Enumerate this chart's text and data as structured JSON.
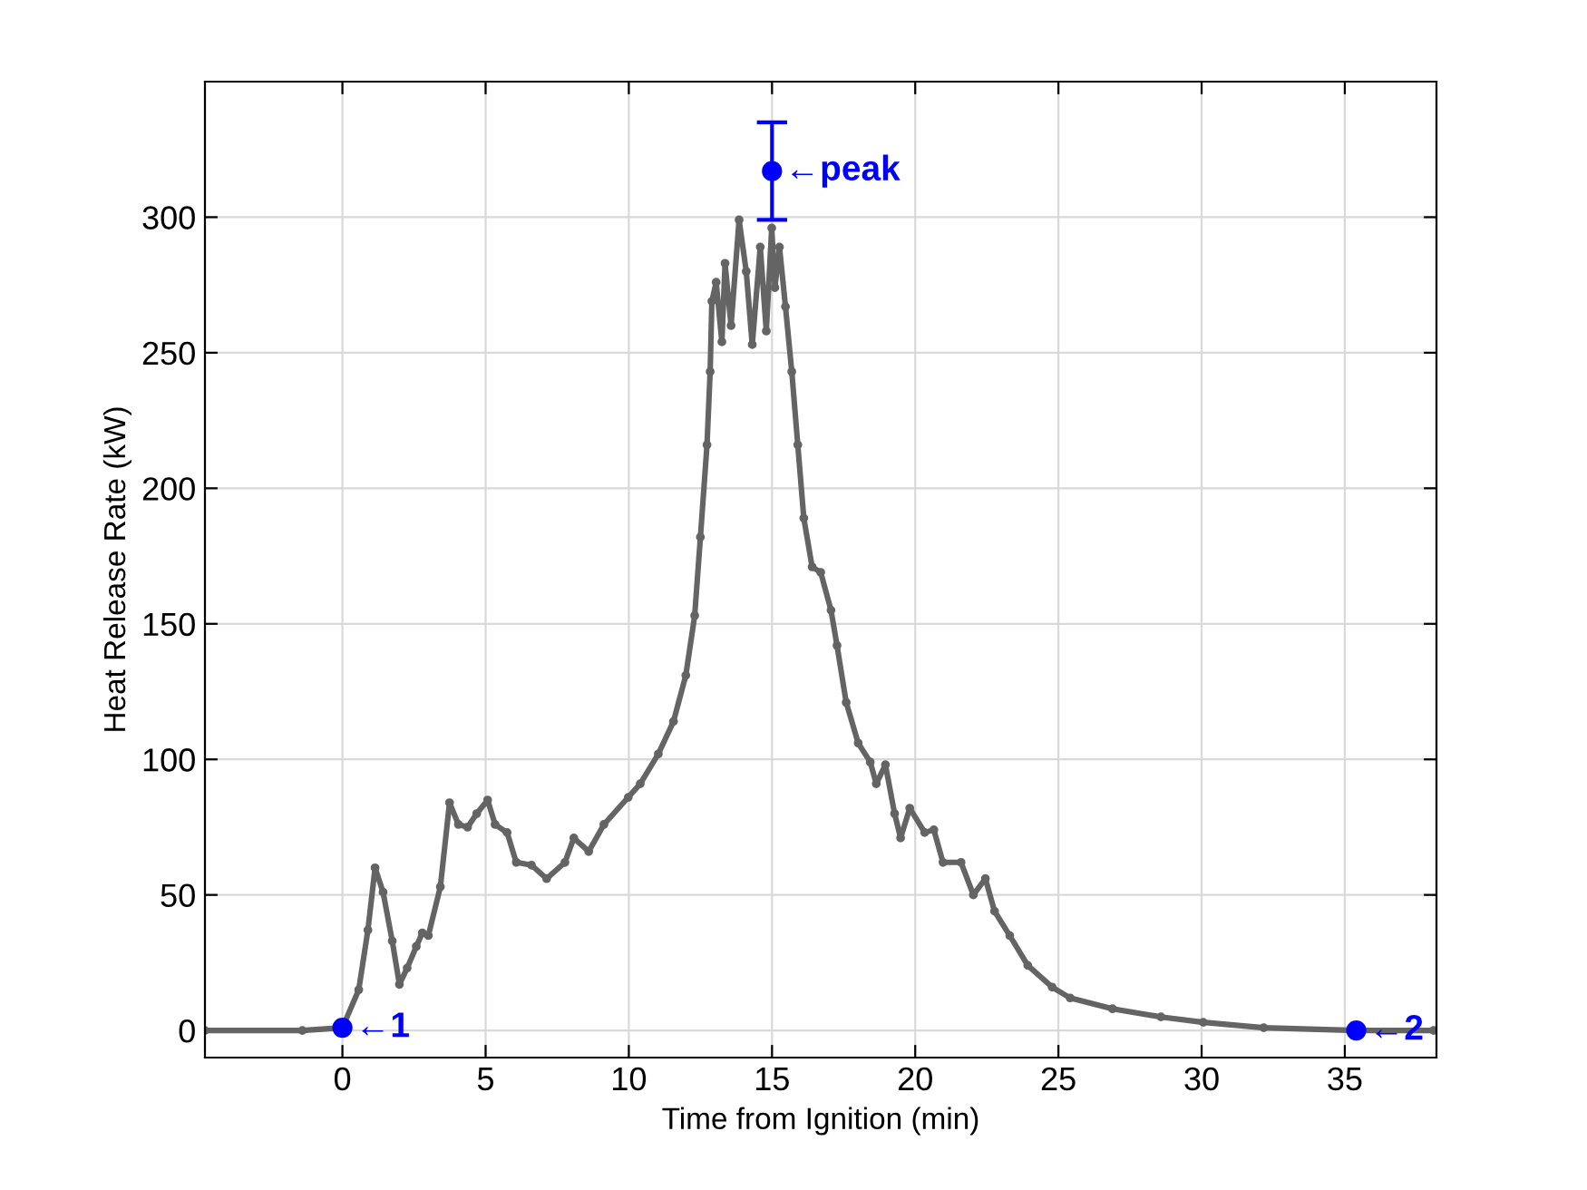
{
  "chart_data": {
    "type": "line",
    "xlabel": "Time from Ignition (min)",
    "ylabel": "Heat Release Rate (kW)",
    "xlim": [
      -4.8,
      38.2
    ],
    "ylim": [
      -10,
      350
    ],
    "xticks": [
      0,
      5,
      10,
      15,
      20,
      25,
      30,
      35
    ],
    "yticks": [
      0,
      50,
      100,
      150,
      200,
      250,
      300
    ],
    "grid": true,
    "marker": "circle",
    "line_style": "solid",
    "series": [
      {
        "color": "#646464",
        "x": [
          -4.8,
          -1.4,
          0,
          0.57,
          0.89,
          1.14,
          1.42,
          1.74,
          1.99,
          2.26,
          2.58,
          2.79,
          3.0,
          3.42,
          3.74,
          4.05,
          4.37,
          4.69,
          5.07,
          5.33,
          5.75,
          6.07,
          6.6,
          7.13,
          7.77,
          8.08,
          8.6,
          9.13,
          9.98,
          10.4,
          11.03,
          11.56,
          11.99,
          12.3,
          12.5,
          12.73,
          12.84,
          12.9,
          13.05,
          13.25,
          13.36,
          13.57,
          13.85,
          14.1,
          14.31,
          14.59,
          14.8,
          14.99,
          15.1,
          15.26,
          15.47,
          15.69,
          15.9,
          16.11,
          16.4,
          16.7,
          17.06,
          17.27,
          17.59,
          18.01,
          18.43,
          18.64,
          18.96,
          19.28,
          19.49,
          19.81,
          20.33,
          20.65,
          20.97,
          21.6,
          22.03,
          22.45,
          22.77,
          23.3,
          23.93,
          24.78,
          25.41,
          26.89,
          28.58,
          30.06,
          32.17,
          35.4,
          38.1
        ],
        "values": [
          0,
          0,
          1,
          15,
          37,
          60,
          51,
          33,
          17,
          23,
          31,
          36,
          35,
          53,
          84,
          76,
          75,
          80,
          85,
          76,
          73,
          62,
          61,
          56,
          62,
          71,
          66,
          76,
          86,
          91,
          102,
          114,
          131,
          153,
          182,
          216,
          243,
          269,
          276,
          254,
          283,
          260,
          299,
          280,
          253,
          289,
          258,
          296,
          274,
          289,
          267,
          243,
          216,
          189,
          171,
          169,
          155,
          142,
          121,
          106,
          99,
          91,
          98,
          80,
          71,
          82,
          73,
          74,
          62,
          62,
          50,
          56,
          44,
          35,
          24,
          16,
          12,
          8,
          5,
          3,
          1,
          0,
          0
        ]
      },
      {
        "type": "scatter",
        "color": "#0000ff",
        "x": [
          0,
          15,
          35.4
        ],
        "values": [
          1,
          317,
          0
        ],
        "errors": [
          null,
          18,
          null
        ]
      }
    ],
    "annotations": [
      {
        "text": "←1",
        "x": 0,
        "y": 1
      },
      {
        "text": "←peak",
        "x": 15,
        "y": 317
      },
      {
        "text": "←2",
        "x": 35.4,
        "y": 0
      }
    ]
  }
}
